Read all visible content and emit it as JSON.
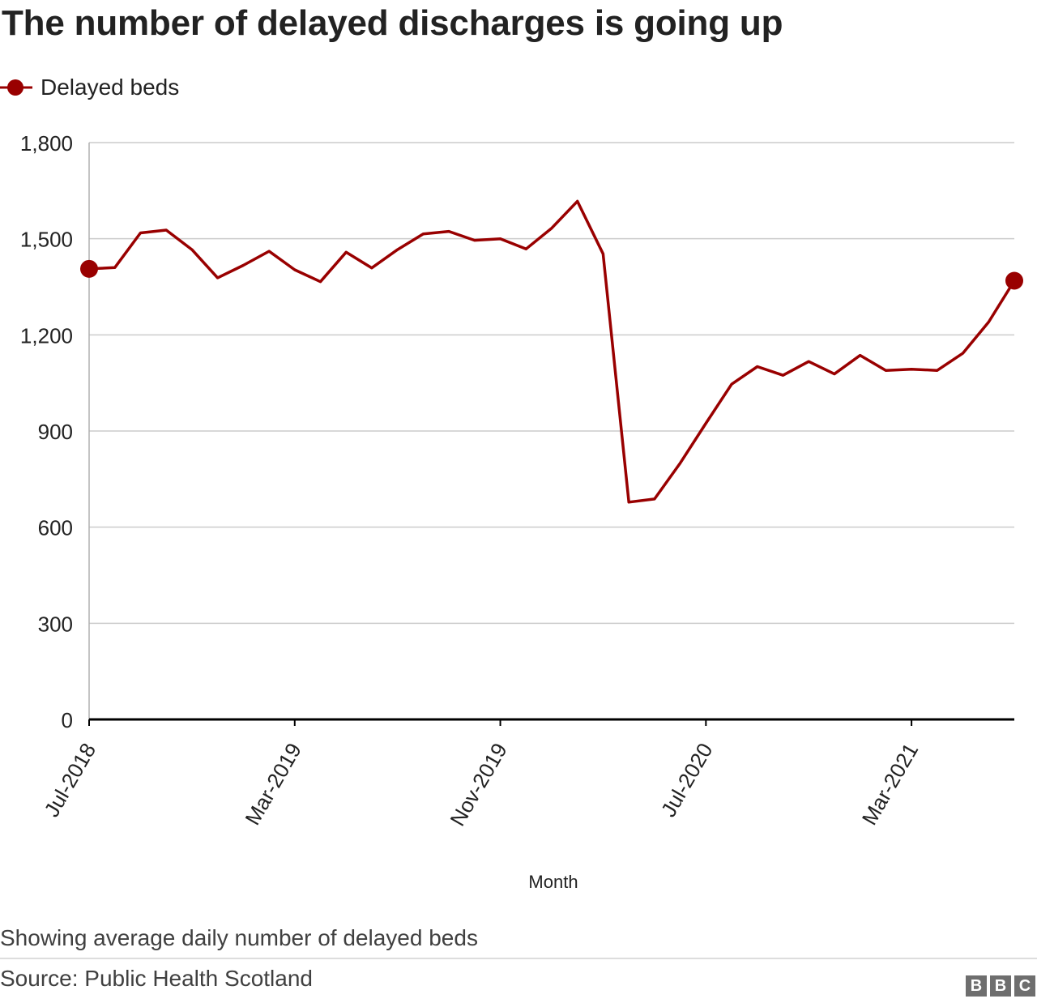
{
  "title": "The number of delayed discharges is going up",
  "note": "Showing average daily number of delayed beds",
  "source": "Source: Public Health Scotland",
  "logo": [
    "B",
    "B",
    "C"
  ],
  "colors": {
    "series": "#990000",
    "grid": "#cccccc",
    "axis": "#000000",
    "text": "#222222",
    "muted": "#404040"
  },
  "chart_data": {
    "type": "line",
    "title": "The number of delayed discharges is going up",
    "xlabel": "Month",
    "ylabel": "",
    "ylim": [
      0,
      1800
    ],
    "yticks": [
      0,
      300,
      600,
      900,
      1200,
      1500,
      1800
    ],
    "ytick_labels": [
      "0",
      "300",
      "600",
      "900",
      "1,200",
      "1,500",
      "1,800"
    ],
    "x": [
      "Jul-2018",
      "Aug-2018",
      "Sep-2018",
      "Oct-2018",
      "Nov-2018",
      "Dec-2018",
      "Jan-2019",
      "Feb-2019",
      "Mar-2019",
      "Apr-2019",
      "May-2019",
      "Jun-2019",
      "Jul-2019",
      "Aug-2019",
      "Sep-2019",
      "Oct-2019",
      "Nov-2019",
      "Dec-2019",
      "Jan-2020",
      "Feb-2020",
      "Mar-2020",
      "Apr-2020",
      "May-2020",
      "Jun-2020",
      "Jul-2020",
      "Aug-2020",
      "Sep-2020",
      "Oct-2020",
      "Nov-2020",
      "Dec-2020",
      "Jan-2021",
      "Feb-2021",
      "Mar-2021",
      "Apr-2021",
      "May-2021",
      "Jun-2021",
      "Jul-2021"
    ],
    "xtick_labels": [
      "Jul-2018",
      "Mar-2019",
      "Nov-2019",
      "Jul-2020",
      "Mar-2021"
    ],
    "xtick_indices": [
      0,
      8,
      16,
      24,
      32
    ],
    "grid": true,
    "legend_position": "top-left",
    "series": [
      {
        "name": "Delayed beds",
        "color": "#990000",
        "marker_ends": true,
        "values": [
          1406,
          1410,
          1518,
          1527,
          1466,
          1378,
          1417,
          1461,
          1403,
          1366,
          1458,
          1409,
          1466,
          1515,
          1523,
          1495,
          1500,
          1468,
          1533,
          1617,
          1453,
          678,
          688,
          800,
          924,
          1046,
          1101,
          1074,
          1117,
          1078,
          1136,
          1089,
          1093,
          1089,
          1143,
          1240,
          1369
        ]
      }
    ]
  }
}
